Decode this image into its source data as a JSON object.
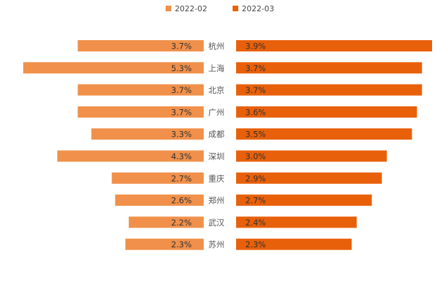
{
  "chart_data": {
    "type": "bar",
    "orientation": "horizontal-butterfly",
    "title": "",
    "categories": [
      "杭州",
      "上海",
      "北京",
      "广州",
      "成都",
      "深圳",
      "重庆",
      "郑州",
      "武汉",
      "苏州"
    ],
    "series": [
      {
        "name": "2022-02",
        "color": "#F0904A",
        "side": "left",
        "values": [
          3.7,
          5.3,
          3.7,
          3.7,
          3.3,
          4.3,
          2.7,
          2.6,
          2.2,
          2.3
        ],
        "labels": [
          "3.7%",
          "5.3%",
          "3.7%",
          "3.7%",
          "3.3%",
          "4.3%",
          "2.7%",
          "2.6%",
          "2.2%",
          "2.3%"
        ]
      },
      {
        "name": "2022-03",
        "color": "#E8600A",
        "side": "right",
        "values": [
          3.9,
          3.7,
          3.7,
          3.6,
          3.5,
          3.0,
          2.9,
          2.7,
          2.4,
          2.3
        ],
        "labels": [
          "3.9%",
          "3.7%",
          "3.7%",
          "3.6%",
          "3.5%",
          "3.0%",
          "2.9%",
          "2.7%",
          "2.4%",
          "2.3%"
        ]
      }
    ],
    "unit": "%",
    "legend_position": "top-center"
  }
}
